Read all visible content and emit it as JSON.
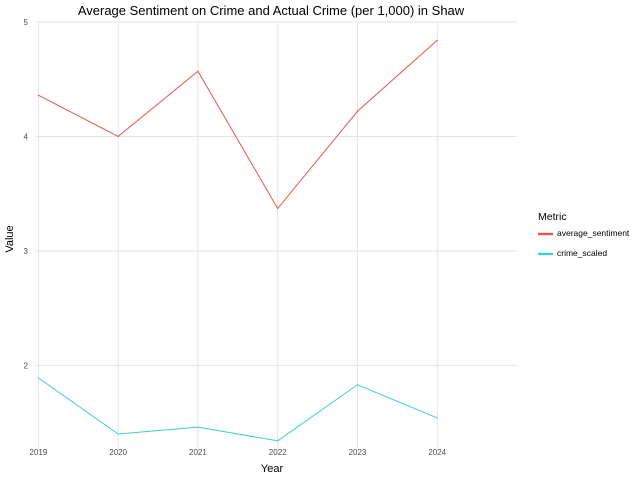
{
  "chart_data": {
    "type": "line",
    "title": "Average Sentiment on Crime and Actual Crime (per 1,000) in Shaw",
    "xlabel": "Year",
    "ylabel": "Value",
    "x": [
      2019,
      2020,
      2021,
      2022,
      2023,
      2024
    ],
    "x_tick_labels": [
      "2019",
      "2020",
      "2021",
      "2022",
      "2023",
      "2024"
    ],
    "y_ticks": [
      2,
      3,
      4,
      5
    ],
    "y_tick_labels": [
      "2",
      "3",
      "4",
      "5"
    ],
    "xlim": [
      2018.97,
      2025.0
    ],
    "ylim": [
      1.26,
      5.0
    ],
    "grid": true,
    "legend": {
      "title": "Metric",
      "position": "right"
    },
    "series": [
      {
        "name": "average_sentiment",
        "color": "#e0584b",
        "values": [
          4.36,
          4.0,
          4.57,
          3.37,
          4.22,
          4.84
        ]
      },
      {
        "name": "crime_scaled",
        "color": "#3fcfcf",
        "values": [
          1.89,
          1.4,
          1.46,
          1.34,
          1.83,
          1.54
        ]
      }
    ]
  }
}
